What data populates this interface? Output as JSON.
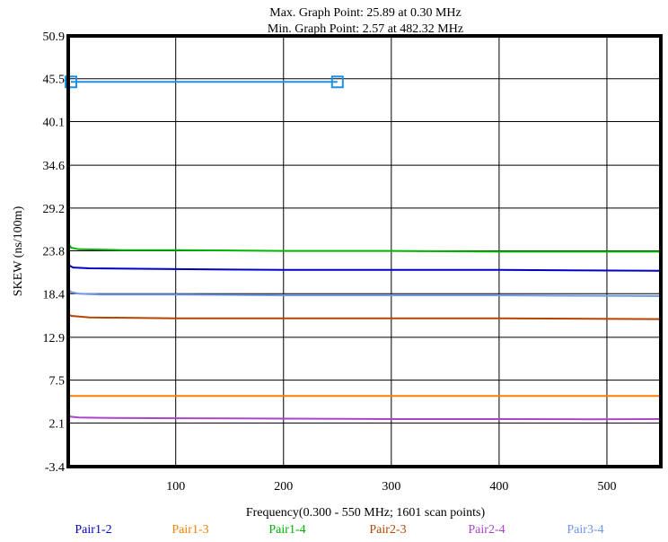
{
  "chart_data": {
    "type": "line",
    "title_lines": [
      "Max. Graph Point: 25.89 at 0.30 MHz",
      "Min. Graph Point: 2.57 at 482.32 MHz"
    ],
    "xlabel": "Frequency(0.300 - 550 MHz; 1601 scan points)",
    "ylabel": "SKEW (ns/100m)",
    "xlim": [
      0.3,
      550
    ],
    "ylim": [
      -3.4,
      50.9
    ],
    "xticks": [
      100,
      200,
      300,
      400,
      500
    ],
    "yticks": [
      50.9,
      45.5,
      40.1,
      34.6,
      29.2,
      23.8,
      18.4,
      12.9,
      7.5,
      2.1,
      -3.4
    ],
    "ytick_labels": [
      "50.9",
      "45.5",
      "40.1",
      "34.6",
      "29.2",
      "23.8",
      "18.4",
      "12.9",
      "7.5",
      "2.1",
      "-3.4"
    ],
    "grid": true,
    "legend_position": "bottom",
    "series": [
      {
        "name": "Pair1-2",
        "color": "#0000c8",
        "x": [
          0.3,
          2,
          5,
          20,
          100,
          200,
          300,
          400,
          550
        ],
        "y": [
          22.2,
          21.9,
          21.7,
          21.6,
          21.5,
          21.4,
          21.4,
          21.4,
          21.3
        ]
      },
      {
        "name": "Pair1-3",
        "color": "#ff7f00",
        "x": [
          0.3,
          100,
          200,
          300,
          400,
          550
        ],
        "y": [
          5.5,
          5.5,
          5.5,
          5.5,
          5.5,
          5.5
        ]
      },
      {
        "name": "Pair1-4",
        "color": "#00b400",
        "x": [
          0.3,
          1,
          3,
          10,
          50,
          100,
          200,
          300,
          400,
          550
        ],
        "y": [
          25.89,
          24.6,
          24.2,
          24.0,
          23.9,
          23.9,
          23.8,
          23.8,
          23.7,
          23.7
        ]
      },
      {
        "name": "Pair2-3",
        "color": "#b44600",
        "x": [
          0.3,
          3,
          20,
          100,
          200,
          300,
          400,
          550
        ],
        "y": [
          15.8,
          15.6,
          15.4,
          15.3,
          15.3,
          15.3,
          15.3,
          15.2
        ]
      },
      {
        "name": "Pair2-4",
        "color": "#aa46c8",
        "x": [
          0.3,
          2,
          10,
          30,
          100,
          200,
          300,
          400,
          482.32,
          550
        ],
        "y": [
          3.3,
          2.9,
          2.8,
          2.75,
          2.7,
          2.65,
          2.6,
          2.6,
          2.57,
          2.6
        ]
      },
      {
        "name": "Pair3-4",
        "color": "#6e96e6",
        "x": [
          0.3,
          1,
          3,
          10,
          30,
          100,
          200,
          300,
          400,
          550
        ],
        "y": [
          19.6,
          18.9,
          18.6,
          18.4,
          18.3,
          18.3,
          18.2,
          18.2,
          18.2,
          18.1
        ]
      }
    ],
    "marker_line": {
      "color": "#1e90e6",
      "x": [
        0.3,
        250
      ],
      "y": [
        45.1,
        45.1
      ]
    }
  }
}
